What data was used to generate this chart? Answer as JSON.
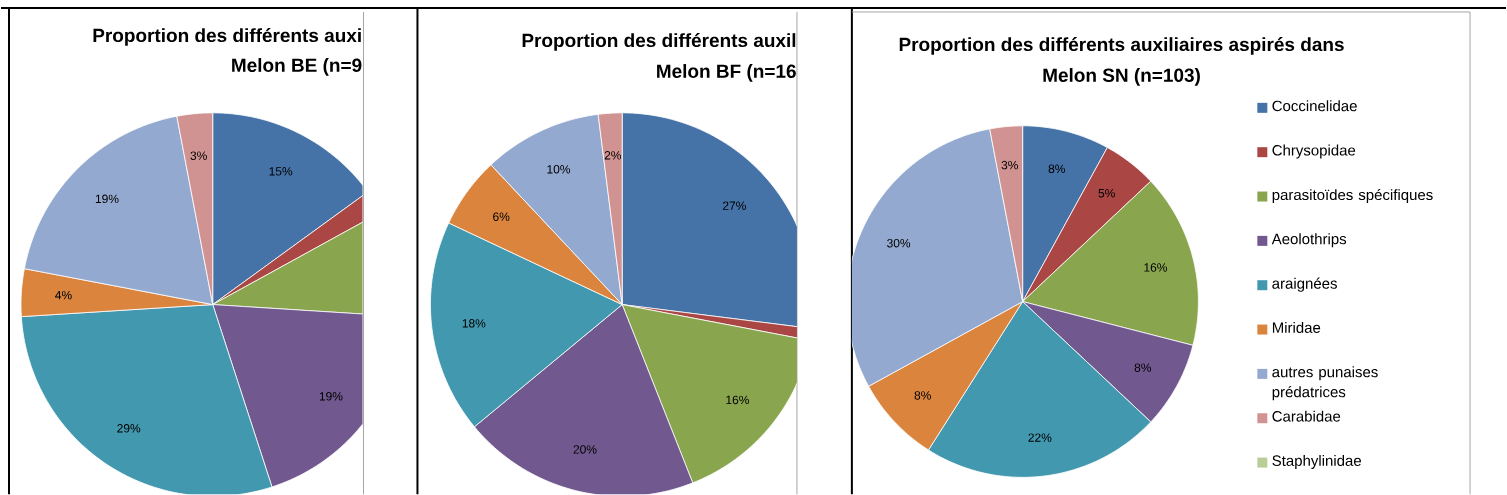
{
  "chart_data": [
    {
      "type": "pie",
      "title": "Proportion des différents auxi",
      "subtitle": "Melon BE (n=9",
      "categories": [
        null,
        null,
        null,
        null,
        null,
        null,
        null,
        null
      ],
      "values": [
        15,
        2,
        9,
        19,
        29,
        4,
        19,
        3
      ],
      "colors": [
        "#4572a7",
        "#aa4643",
        "#89a54e",
        "#71588f",
        "#4198af",
        "#db843d",
        "#93a9cf",
        "#d19392"
      ],
      "value_labels": [
        "15%",
        null,
        null,
        "19%",
        "29%",
        "4%",
        "19%",
        "3%"
      ]
    },
    {
      "type": "pie",
      "title": "Proportion des différents auxil",
      "subtitle": "Melon BF (n=16",
      "categories": [
        null,
        null,
        null,
        null,
        null,
        null,
        null,
        null
      ],
      "values": [
        27,
        1,
        16,
        20,
        18,
        6,
        10,
        2
      ],
      "colors": [
        "#4572a7",
        "#aa4643",
        "#89a54e",
        "#71588f",
        "#4198af",
        "#db843d",
        "#93a9cf",
        "#d19392"
      ],
      "value_labels": [
        "27%",
        null,
        "16%",
        "20%",
        "18%",
        "6%",
        "10%",
        "2%"
      ]
    },
    {
      "type": "pie",
      "title": "Proportion des différents auxiliaires aspirés dans",
      "subtitle": "Melon SN (n=103)",
      "categories": [
        "Coccinelidae",
        "Chrysopidae",
        "parasitoïdes spécifiques",
        "Aeolothrips",
        "araignées",
        "Miridae",
        "autres punaises prédatrices",
        "Carabidae",
        "Staphylinidae"
      ],
      "values": [
        8,
        5,
        16,
        8,
        22,
        8,
        30,
        3,
        0
      ],
      "colors": [
        "#4572a7",
        "#aa4643",
        "#89a54e",
        "#71588f",
        "#4198af",
        "#db843d",
        "#93a9cf",
        "#d19392",
        "#b9cd96"
      ],
      "value_labels": [
        "8%",
        "5%",
        "16%",
        "8%",
        "22%",
        "8%",
        "30%",
        "3%",
        null
      ],
      "legend": "right"
    }
  ]
}
